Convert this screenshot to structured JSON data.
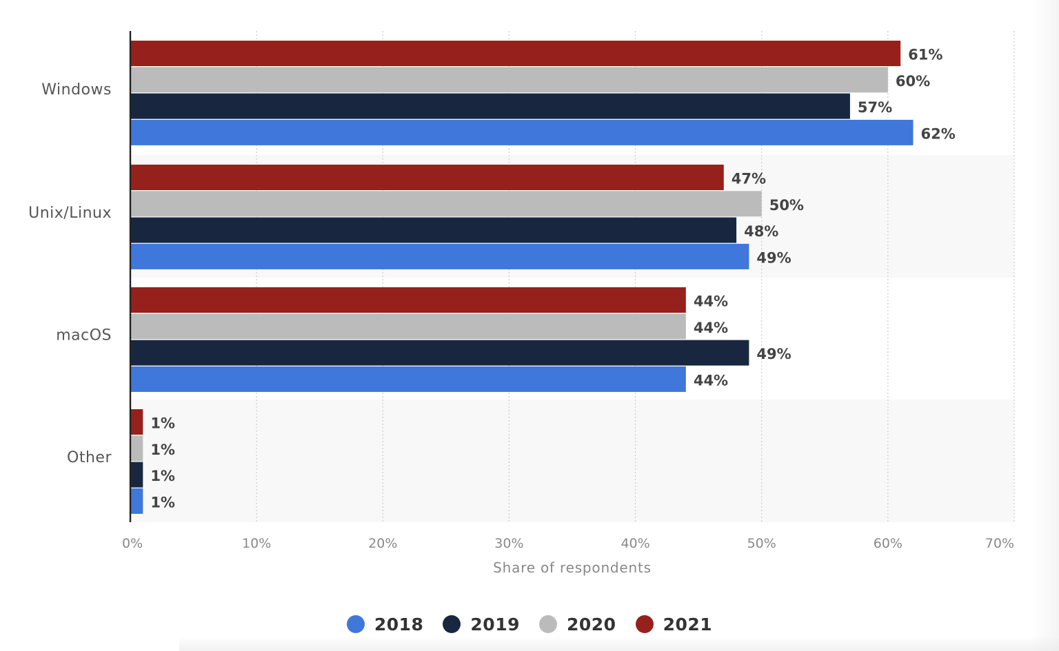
{
  "chart_data": {
    "type": "bar",
    "orientation": "horizontal",
    "categories": [
      "Windows",
      "Unix/Linux",
      "macOS",
      "Other"
    ],
    "series": [
      {
        "name": "2018",
        "color": "#3f77da",
        "values": [
          62,
          49,
          44,
          1
        ]
      },
      {
        "name": "2019",
        "color": "#18273f",
        "values": [
          57,
          48,
          49,
          1
        ]
      },
      {
        "name": "2020",
        "color": "#bbbbbb",
        "values": [
          60,
          50,
          44,
          1
        ]
      },
      {
        "name": "2021",
        "color": "#96211c",
        "values": [
          61,
          47,
          44,
          1
        ]
      }
    ],
    "data_labels": {
      "Windows": {
        "2021": "61%",
        "2020": "60%",
        "2019": "57%",
        "2018": "62%"
      },
      "Unix/Linux": {
        "2021": "47%",
        "2020": "50%",
        "2019": "48%",
        "2018": "49%"
      },
      "macOS": {
        "2021": "44%",
        "2020": "44%",
        "2019": "49%",
        "2018": "44%"
      },
      "Other": {
        "2021": "1%",
        "2020": "1%",
        "2019": "1%",
        "2018": "1%"
      }
    },
    "xlabel": "Share of respondents",
    "ylabel": "",
    "xlim": [
      0,
      70
    ],
    "x_ticks": [
      0,
      10,
      20,
      30,
      40,
      50,
      60,
      70
    ],
    "x_tick_labels": [
      "0%",
      "10%",
      "20%",
      "30%",
      "40%",
      "50%",
      "60%",
      "70%"
    ],
    "grid": true,
    "legend_placement": "bottom",
    "bar_order_top_to_bottom": [
      "2021",
      "2020",
      "2019",
      "2018"
    ]
  }
}
